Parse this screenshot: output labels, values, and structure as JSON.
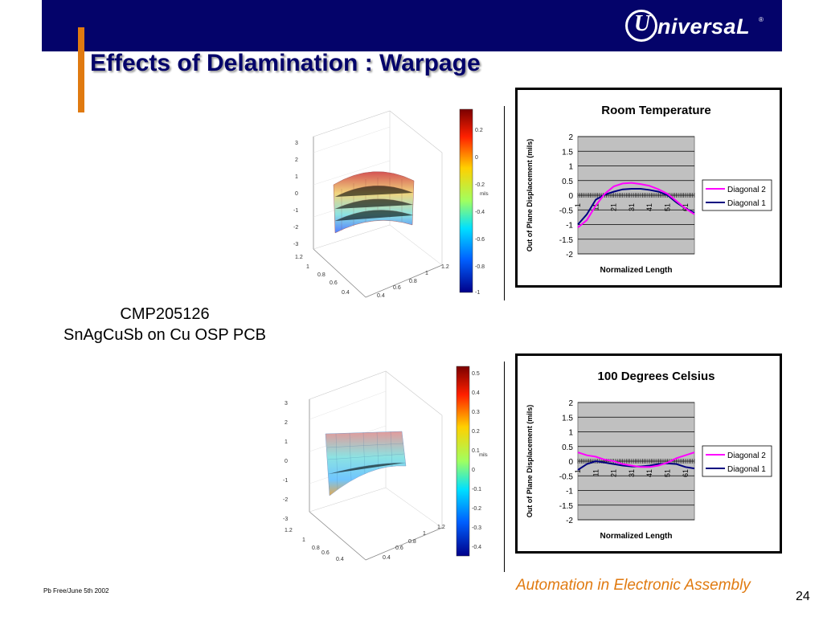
{
  "header": {
    "logo_text": "niversaL",
    "logo_letter": "U",
    "logo_reg": "®"
  },
  "slide": {
    "title": "Effects of Delamination : Warpage",
    "caption_line1": "CMP205126",
    "caption_line2": "SnAgCuSb on Cu OSP PCB"
  },
  "surface_plots": [
    {
      "colorbar_ticks": [
        "0.2",
        "0",
        "-0.2",
        "-0.4",
        "-0.6",
        "-0.8",
        "-1"
      ],
      "colorbar_unit": "mils",
      "z_ticks": [
        "3",
        "2",
        "1",
        "0",
        "-1",
        "-2",
        "-3"
      ],
      "x_ticks": [
        "1.2",
        "1",
        "0.8",
        "0.6",
        "0.4"
      ],
      "y_ticks": [
        "1.2",
        "1",
        "0.8",
        "0.6",
        "0.4"
      ]
    },
    {
      "colorbar_ticks": [
        "0.5",
        "0.4",
        "0.3",
        "0.2",
        "0.1",
        "0",
        "-0.1",
        "-0.2",
        "-0.3",
        "-0.4"
      ],
      "colorbar_unit": "mils",
      "z_ticks": [
        "3",
        "2",
        "1",
        "0",
        "-1",
        "-2",
        "-3"
      ],
      "x_ticks": [
        "1.2",
        "1",
        "0.8",
        "0.6",
        "0.4"
      ],
      "y_ticks": [
        "1.2",
        "1",
        "0.8",
        "0.6",
        "0.4"
      ]
    }
  ],
  "chart_data": [
    {
      "type": "line",
      "title": "Room Temperature",
      "xlabel": "Normalized Length",
      "ylabel": "Out of Plane Displacement (mils)",
      "ylim": [
        -2,
        2
      ],
      "yticks": [
        "2",
        "1.5",
        "1",
        "0.5",
        "0",
        "-0.5",
        "-1",
        "-1.5",
        "-2"
      ],
      "xtick_labels": [
        "1",
        "11",
        "21",
        "31",
        "41",
        "51",
        "61"
      ],
      "x": [
        1,
        6,
        11,
        16,
        21,
        26,
        31,
        36,
        41,
        46,
        51,
        56,
        61,
        66
      ],
      "series": [
        {
          "name": "Diagonal 2",
          "color": "#ff00ff",
          "values": [
            -1.1,
            -0.85,
            -0.35,
            0.05,
            0.3,
            0.4,
            0.42,
            0.38,
            0.32,
            0.2,
            0.05,
            -0.2,
            -0.45,
            -0.65
          ]
        },
        {
          "name": "Diagonal 1",
          "color": "#000080",
          "values": [
            -1.0,
            -0.65,
            -0.15,
            0.02,
            0.12,
            0.2,
            0.22,
            0.22,
            0.18,
            0.12,
            0.0,
            -0.25,
            -0.45,
            -0.6
          ]
        }
      ],
      "legend": "right",
      "grid": true,
      "plot_bg": "#c0c0c0"
    },
    {
      "type": "line",
      "title": "100 Degrees Celsius",
      "xlabel": "Normalized Length",
      "ylabel": "Out of Plane Displacement (mils)",
      "ylim": [
        -2,
        2
      ],
      "yticks": [
        "2",
        "1.5",
        "1",
        "0.5",
        "0",
        "-0.5",
        "-1",
        "-1.5",
        "-2"
      ],
      "xtick_labels": [
        "1",
        "11",
        "21",
        "31",
        "41",
        "51",
        "61"
      ],
      "x": [
        1,
        6,
        11,
        16,
        21,
        26,
        31,
        36,
        41,
        46,
        51,
        56,
        61,
        66
      ],
      "series": [
        {
          "name": "Diagonal 2",
          "color": "#ff00ff",
          "values": [
            0.3,
            0.2,
            0.15,
            0.05,
            0.0,
            -0.1,
            -0.15,
            -0.2,
            -0.2,
            -0.15,
            -0.05,
            0.1,
            0.2,
            0.3
          ]
        },
        {
          "name": "Diagonal 1",
          "color": "#000080",
          "values": [
            -0.3,
            -0.1,
            0.0,
            -0.05,
            -0.1,
            -0.15,
            -0.18,
            -0.18,
            -0.15,
            -0.1,
            -0.08,
            -0.1,
            -0.2,
            -0.25
          ]
        }
      ],
      "legend": "right",
      "grid": true,
      "plot_bg": "#c0c0c0"
    }
  ],
  "footer": {
    "left": "Pb Free/June 5th 2002",
    "right": "Automation in Electronic Assembly",
    "page": "24"
  }
}
